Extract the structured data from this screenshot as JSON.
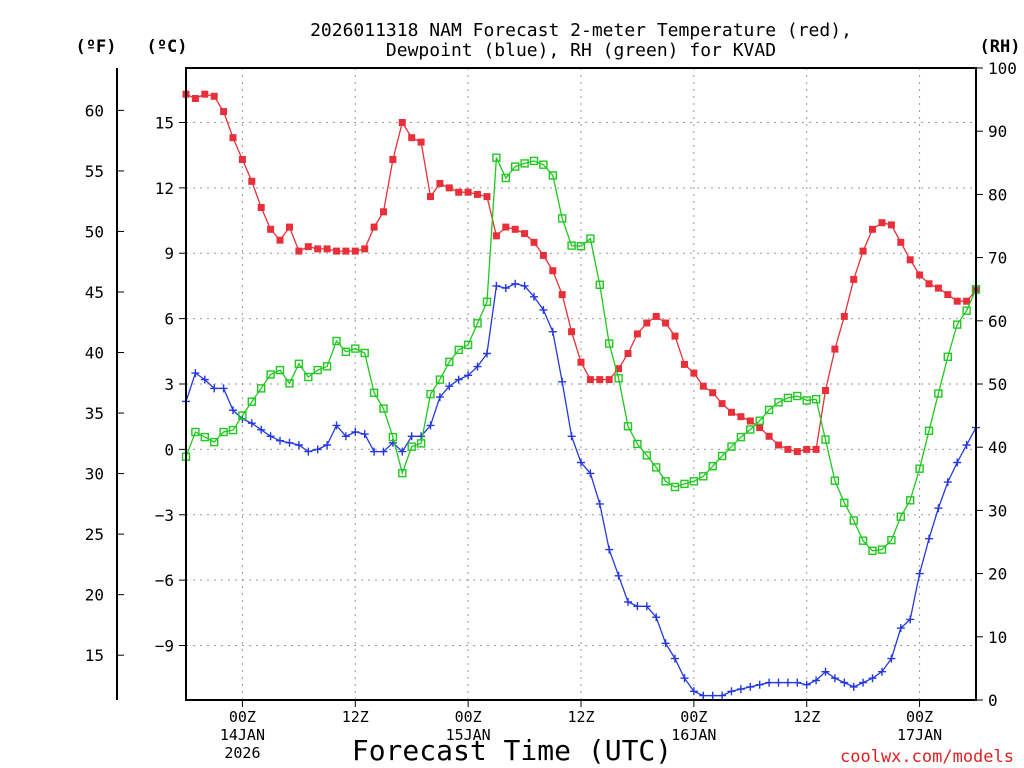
{
  "colors": {
    "temp": "#e8303a",
    "dewpoint": "#2438e0",
    "rh": "#20c820",
    "axis": "#000000",
    "grid": "#9a9a9a",
    "credit": "#e02020"
  },
  "chart_data": {
    "type": "line",
    "title_line1": "2026011318 NAM Forecast 2-meter Temperature (red),",
    "title_line2": "Dewpoint (blue), RH (green) for KVAD",
    "xlabel": "Forecast Time (UTC)",
    "credit": "coolwx.com/models",
    "left_outer_axis": {
      "label": "(ºF)",
      "ticks": [
        15,
        20,
        25,
        30,
        35,
        40,
        45,
        50,
        55,
        60
      ]
    },
    "left_axis": {
      "label": "(ºC)",
      "ticks": [
        -9,
        -6,
        -3,
        0,
        3,
        6,
        9,
        12,
        15
      ],
      "ylim": [
        -11.5,
        17.5
      ]
    },
    "right_axis": {
      "label": "(RH)",
      "ticks": [
        0,
        10,
        20,
        30,
        40,
        50,
        60,
        70,
        80,
        90,
        100
      ],
      "ylim": [
        0,
        100
      ]
    },
    "x_range": [
      18,
      102
    ],
    "x_ticks": [
      {
        "x": 24,
        "line1": "00Z",
        "line2": "14JAN",
        "line3": "2026"
      },
      {
        "x": 36,
        "line1": "12Z",
        "line2": "",
        "line3": ""
      },
      {
        "x": 48,
        "line1": "00Z",
        "line2": "15JAN",
        "line3": ""
      },
      {
        "x": 60,
        "line1": "12Z",
        "line2": "",
        "line3": ""
      },
      {
        "x": 72,
        "line1": "00Z",
        "line2": "16JAN",
        "line3": ""
      },
      {
        "x": 84,
        "line1": "12Z",
        "line2": "",
        "line3": ""
      },
      {
        "x": 96,
        "line1": "00Z",
        "line2": "17JAN",
        "line3": ""
      }
    ],
    "x": [
      18,
      19,
      20,
      21,
      22,
      23,
      24,
      25,
      26,
      27,
      28,
      29,
      30,
      31,
      32,
      33,
      34,
      35,
      36,
      37,
      38,
      39,
      40,
      41,
      42,
      43,
      44,
      45,
      46,
      47,
      48,
      49,
      50,
      51,
      52,
      53,
      54,
      55,
      56,
      57,
      58,
      59,
      60,
      61,
      62,
      63,
      64,
      65,
      66,
      67,
      68,
      69,
      70,
      71,
      72,
      73,
      74,
      75,
      76,
      77,
      78,
      79,
      80,
      81,
      82,
      83,
      84,
      85,
      86,
      87,
      88,
      89,
      90,
      91,
      92,
      93,
      94,
      95,
      96,
      97,
      98,
      99,
      100,
      101,
      102
    ],
    "series": [
      {
        "name": "Temperature (°C)",
        "axis": "left",
        "marker": "filled-square",
        "values": [
          16.3,
          16.1,
          16.3,
          16.2,
          15.5,
          14.3,
          13.3,
          12.3,
          11.1,
          10.1,
          9.6,
          10.2,
          9.1,
          9.3,
          9.2,
          9.2,
          9.1,
          9.1,
          9.1,
          9.2,
          10.2,
          10.9,
          13.3,
          15.0,
          14.3,
          14.1,
          11.6,
          12.2,
          12.0,
          11.8,
          11.8,
          11.7,
          11.6,
          9.8,
          10.2,
          10.1,
          9.9,
          9.5,
          8.9,
          8.2,
          7.1,
          5.4,
          4.0,
          3.2,
          3.2,
          3.2,
          3.7,
          4.4,
          5.3,
          5.8,
          6.1,
          5.8,
          5.2,
          3.9,
          3.5,
          2.9,
          2.6,
          2.1,
          1.7,
          1.5,
          1.3,
          1.0,
          0.6,
          0.2,
          0.0,
          -0.1,
          0.0,
          0.0,
          2.7,
          4.6,
          6.1,
          7.8,
          9.1,
          10.1,
          10.4,
          10.3,
          9.5,
          8.7,
          8.0,
          7.6,
          7.4,
          7.1,
          6.8,
          6.8,
          7.3
        ]
      },
      {
        "name": "Dewpoint (°C)",
        "axis": "left",
        "marker": "plus",
        "values": [
          2.2,
          3.5,
          3.2,
          2.8,
          2.8,
          1.8,
          1.4,
          1.2,
          0.9,
          0.6,
          0.4,
          0.3,
          0.2,
          -0.1,
          0.0,
          0.2,
          1.1,
          0.6,
          0.8,
          0.7,
          -0.1,
          -0.1,
          0.3,
          -0.1,
          0.6,
          0.6,
          1.1,
          2.4,
          2.9,
          3.2,
          3.4,
          3.8,
          4.4,
          7.5,
          7.4,
          7.6,
          7.5,
          7.0,
          6.4,
          5.4,
          3.1,
          0.6,
          -0.6,
          -1.1,
          -2.5,
          -4.6,
          -5.8,
          -7.0,
          -7.2,
          -7.2,
          -7.7,
          -8.9,
          -9.6,
          -10.5,
          -11.1,
          -11.3,
          -11.3,
          -11.3,
          -11.1,
          -11.0,
          -10.9,
          -10.8,
          -10.7,
          -10.7,
          -10.7,
          -10.7,
          -10.8,
          -10.6,
          -10.2,
          -10.5,
          -10.7,
          -10.9,
          -10.7,
          -10.5,
          -10.2,
          -9.6,
          -8.2,
          -7.8,
          -5.7,
          -4.1,
          -2.7,
          -1.5,
          -0.6,
          0.2,
          1.0
        ]
      },
      {
        "name": "RH (%)",
        "axis": "right",
        "marker": "open-square",
        "values": [
          38.5,
          42.4,
          41.6,
          40.8,
          42.4,
          42.7,
          45.0,
          47.2,
          49.3,
          51.5,
          52.2,
          50.1,
          53.2,
          51.1,
          52.2,
          52.8,
          56.8,
          55.1,
          55.6,
          54.9,
          48.6,
          46.1,
          41.6,
          35.9,
          40.1,
          40.6,
          48.4,
          50.7,
          53.5,
          55.4,
          56.2,
          59.6,
          63.0,
          85.8,
          82.6,
          84.4,
          84.9,
          85.3,
          84.7,
          83.0,
          76.2,
          71.9,
          71.8,
          73.0,
          65.7,
          56.4,
          50.9,
          43.3,
          40.5,
          38.7,
          36.8,
          34.6,
          33.7,
          34.2,
          34.6,
          35.4,
          37.0,
          38.6,
          40.1,
          41.6,
          42.8,
          44.2,
          45.9,
          47.1,
          47.8,
          48.1,
          47.4,
          47.6,
          41.2,
          34.7,
          31.2,
          28.4,
          25.2,
          23.6,
          23.8,
          25.3,
          29.0,
          31.6,
          36.6,
          42.6,
          48.5,
          54.3,
          59.4,
          61.6,
          65.0
        ]
      }
    ]
  }
}
